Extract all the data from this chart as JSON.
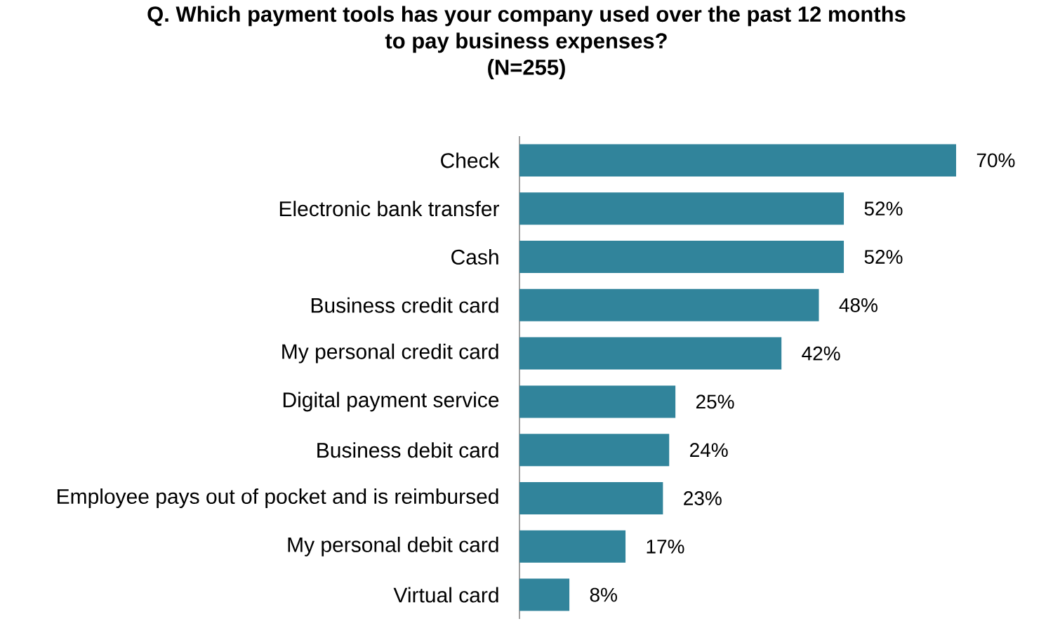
{
  "chart_data": {
    "type": "bar",
    "orientation": "horizontal",
    "title": "Q. Which payment tools has your company used over the past 12 months to pay business expenses?",
    "subtitle": "(N=255)",
    "categories": [
      "Check",
      "Electronic bank transfer",
      "Cash",
      "Business credit card",
      "My personal credit card",
      "Digital payment service",
      "Business debit card",
      "Employee pays out of pocket and is reimbursed",
      "My personal debit card",
      "Virtual card"
    ],
    "values": [
      70,
      52,
      52,
      48,
      42,
      25,
      24,
      23,
      17,
      8
    ],
    "value_labels": [
      "70%",
      "52%",
      "52%",
      "48%",
      "42%",
      "25%",
      "24%",
      "23%",
      "17%",
      "8%"
    ],
    "color": "#31849b",
    "tick_labels": "y"
  }
}
